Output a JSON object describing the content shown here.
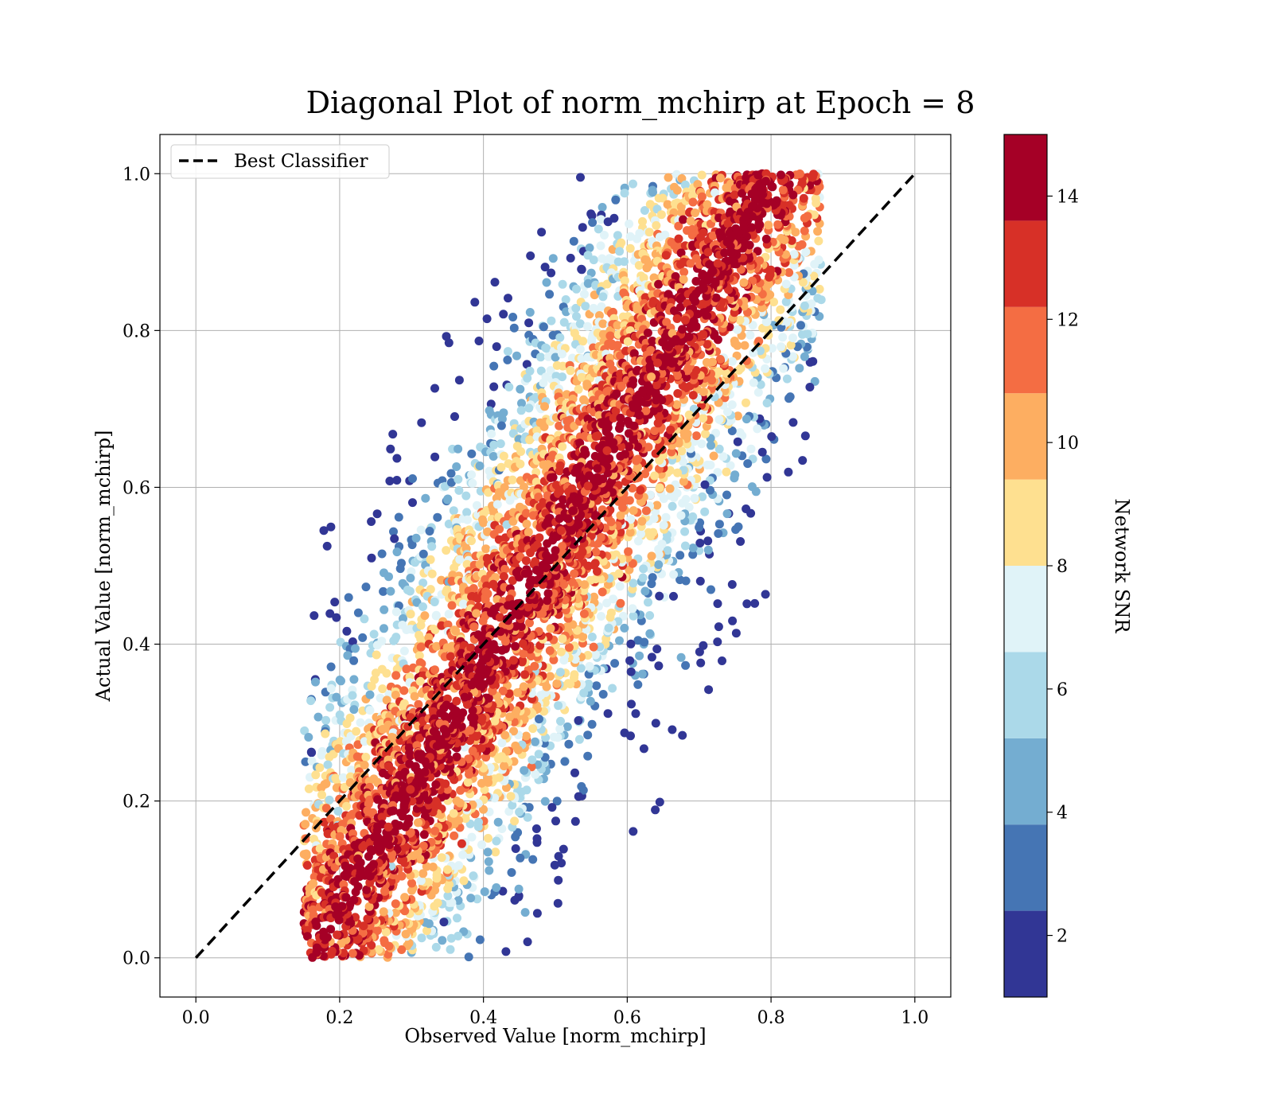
{
  "chart_data": {
    "type": "scatter",
    "title": "Diagonal Plot of norm_mchirp at Epoch = 8",
    "xlabel": "Observed Value [norm_mchirp]",
    "ylabel": "Actual Value [norm_mchirp]",
    "xlim": [
      -0.05,
      1.05
    ],
    "ylim": [
      -0.05,
      1.05
    ],
    "xticks": [
      "0.0",
      "0.2",
      "0.4",
      "0.6",
      "0.8",
      "1.0"
    ],
    "yticks": [
      "0.0",
      "0.2",
      "0.4",
      "0.6",
      "0.8",
      "1.0"
    ],
    "grid": true,
    "legend": {
      "placement": "top-left",
      "entries": [
        "Best Classifier"
      ]
    },
    "reference_line": {
      "name": "Best Classifier",
      "x": [
        0,
        1
      ],
      "y": [
        0,
        1
      ],
      "style": "dashed",
      "color": "#000000"
    },
    "colorbar": {
      "label": "Network SNR",
      "range": [
        1,
        15
      ],
      "ticks": [
        "2",
        "4",
        "6",
        "8",
        "10",
        "12",
        "14"
      ],
      "levels": [
        1,
        2.4,
        3.8,
        5.2,
        6.6,
        8,
        9.4,
        10.8,
        12.2,
        13.6,
        15
      ],
      "colors": [
        "#313695",
        "#4575b4",
        "#74add1",
        "#abd9e9",
        "#e0f3f8",
        "#fee090",
        "#fdae61",
        "#f46d43",
        "#d73027",
        "#a50026"
      ]
    },
    "point_cloud": {
      "description": "dense scatter of ~tens of thousands of samples; observed x in [0.15, 0.87], actual y in [0.0, 1.0]; high-SNR points concentrated along diagonal, low-SNR points scattered away",
      "observed_range": [
        0.15,
        0.87
      ],
      "actual_range": [
        0.0,
        1.0
      ]
    }
  }
}
